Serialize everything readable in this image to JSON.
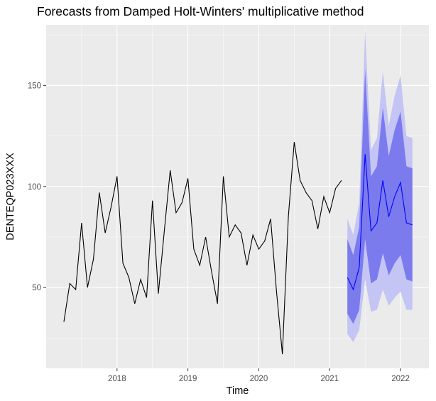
{
  "chart_data": {
    "type": "line",
    "title": "Forecasts from Damped Holt-Winters' multiplicative method",
    "xlabel": "Time",
    "ylabel": "DENTEQP023XXX",
    "xlim": [
      2017.0,
      2022.4
    ],
    "ylim": [
      10,
      180
    ],
    "x_ticks": [
      2018,
      2019,
      2020,
      2021,
      2022
    ],
    "x_tick_labels": [
      "2018",
      "2019",
      "2020",
      "2021",
      "2022"
    ],
    "y_ticks": [
      50,
      100,
      150
    ],
    "y_tick_labels": [
      "50",
      "100",
      "150"
    ],
    "grid": true,
    "background": "#ebebeb",
    "colors": {
      "actual": "#000000",
      "forecast": "#0000ff",
      "band80": "#7b7bee",
      "band95": "#c4c4f5"
    },
    "series": [
      {
        "kind": "actual",
        "x": [
          2017.25,
          2017.333,
          2017.417,
          2017.5,
          2017.583,
          2017.667,
          2017.75,
          2017.833,
          2017.917,
          2018.0,
          2018.083,
          2018.167,
          2018.25,
          2018.333,
          2018.417,
          2018.5,
          2018.583,
          2018.667,
          2018.75,
          2018.833,
          2018.917,
          2019.0,
          2019.083,
          2019.167,
          2019.25,
          2019.333,
          2019.417,
          2019.5,
          2019.583,
          2019.667,
          2019.75,
          2019.833,
          2019.917,
          2020.0,
          2020.083,
          2020.167,
          2020.25,
          2020.333,
          2020.417,
          2020.5,
          2020.583,
          2020.667,
          2020.75,
          2020.833,
          2020.917,
          2021.0,
          2021.083,
          2021.167
        ],
        "values": [
          33,
          52,
          49,
          82,
          50,
          64,
          97,
          77,
          90,
          105,
          62,
          55,
          42,
          54,
          45,
          93,
          47,
          78,
          108,
          87,
          92,
          104,
          69,
          61,
          75,
          58,
          42,
          105,
          75,
          81,
          77,
          61,
          76,
          69,
          73,
          84,
          48,
          17,
          85,
          122,
          103,
          97,
          93,
          79,
          95,
          87,
          99,
          103
        ]
      },
      {
        "kind": "forecast",
        "x": [
          2021.25,
          2021.333,
          2021.417,
          2021.5,
          2021.583,
          2021.667,
          2021.75,
          2021.833,
          2021.917,
          2022.0,
          2022.083,
          2022.167
        ],
        "values": [
          55,
          49,
          60,
          116,
          78,
          82,
          103,
          85,
          95,
          102,
          82,
          81
        ],
        "lo80": [
          37,
          32,
          39,
          74,
          52,
          54,
          67,
          56,
          62,
          66,
          54,
          53
        ],
        "hi80": [
          74,
          66,
          80,
          158,
          105,
          110,
          139,
          115,
          128,
          137,
          110,
          109
        ],
        "lo95": [
          27,
          23,
          29,
          54,
          38,
          39,
          49,
          41,
          45,
          48,
          39,
          39
        ],
        "hi95": [
          84,
          76,
          92,
          177,
          118,
          124,
          157,
          130,
          145,
          155,
          125,
          124
        ]
      }
    ]
  }
}
